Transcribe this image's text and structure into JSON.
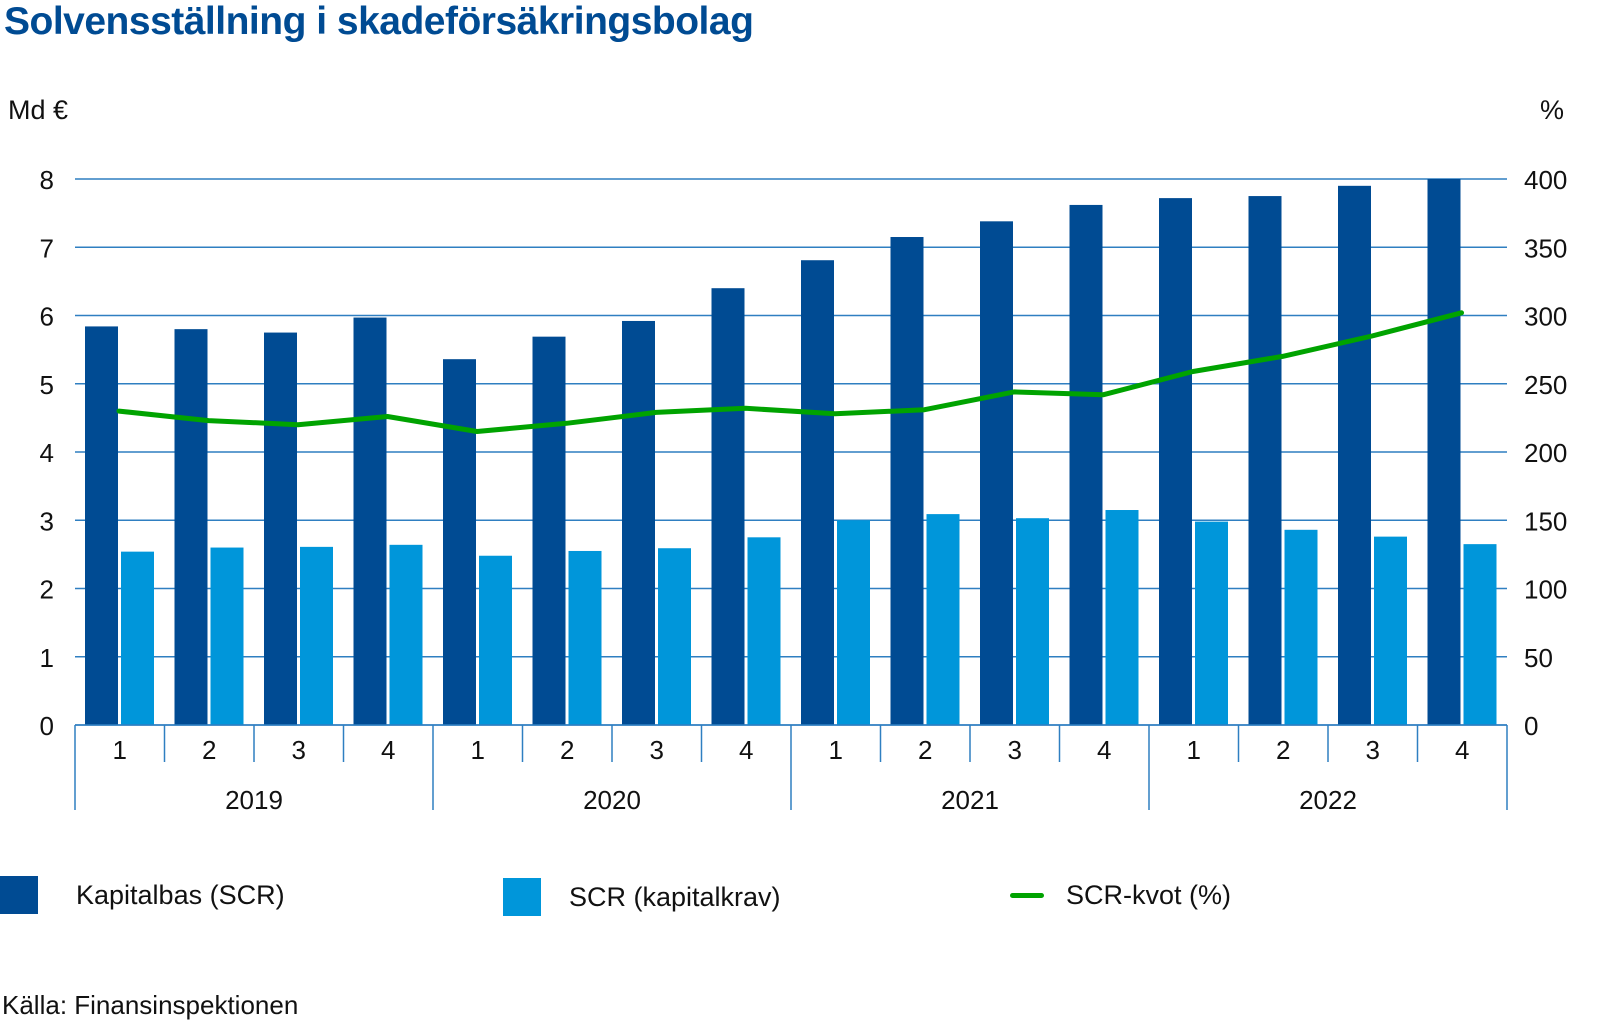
{
  "title": "Solvensställning i skadeförsäkringsbolag",
  "axes": {
    "left_unit": "Md €",
    "right_unit": "%",
    "left_ticks": [
      "0",
      "1",
      "2",
      "3",
      "4",
      "5",
      "6",
      "7",
      "8"
    ],
    "right_ticks": [
      "0",
      "50",
      "100",
      "150",
      "200",
      "250",
      "300",
      "350",
      "400"
    ]
  },
  "colors": {
    "kapitalbas": "#004b93",
    "scr": "#0096da",
    "kvot": "#00a300",
    "grid": "#2f7fc1",
    "title": "#004b93"
  },
  "legend": [
    {
      "label": "Kapitalbas (SCR)",
      "type": "bar",
      "color": "#004b93"
    },
    {
      "label": "SCR (kapitalkrav)",
      "type": "bar",
      "color": "#0096da"
    },
    {
      "label": "SCR-kvot (%)",
      "type": "line",
      "color": "#00a300"
    }
  ],
  "source": "Källa: Finansinspektionen",
  "chart_data": {
    "type": "bar",
    "title": "Solvensställning i skadeförsäkringsbolag",
    "xlabel": "",
    "ylabel": "Md €",
    "y2label": "%",
    "ylim": [
      0,
      8
    ],
    "y2lim": [
      0,
      400
    ],
    "grid": true,
    "legend_position": "bottom",
    "years": [
      "2019",
      "2020",
      "2021",
      "2022"
    ],
    "categories": [
      "1",
      "2",
      "3",
      "4",
      "1",
      "2",
      "3",
      "4",
      "1",
      "2",
      "3",
      "4",
      "1",
      "2",
      "3",
      "4"
    ],
    "category_years": [
      "2019",
      "2019",
      "2019",
      "2019",
      "2020",
      "2020",
      "2020",
      "2020",
      "2021",
      "2021",
      "2021",
      "2021",
      "2022",
      "2022",
      "2022",
      "2022"
    ],
    "series": [
      {
        "name": "Kapitalbas (SCR)",
        "type": "bar",
        "axis": "left",
        "values": [
          5.84,
          5.8,
          5.75,
          5.97,
          5.36,
          5.69,
          5.92,
          6.4,
          6.81,
          7.15,
          7.38,
          7.62,
          7.72,
          7.75,
          7.9,
          8.0
        ]
      },
      {
        "name": "SCR (kapitalkrav)",
        "type": "bar",
        "axis": "left",
        "values": [
          2.54,
          2.6,
          2.61,
          2.64,
          2.48,
          2.55,
          2.59,
          2.75,
          3.0,
          3.09,
          3.03,
          3.15,
          2.98,
          2.86,
          2.76,
          2.65
        ]
      },
      {
        "name": "SCR-kvot (%)",
        "type": "line",
        "axis": "right",
        "values": [
          230,
          223,
          220,
          226,
          215,
          221,
          229,
          232,
          228,
          231,
          244,
          242,
          259,
          270,
          285,
          302
        ]
      }
    ]
  }
}
